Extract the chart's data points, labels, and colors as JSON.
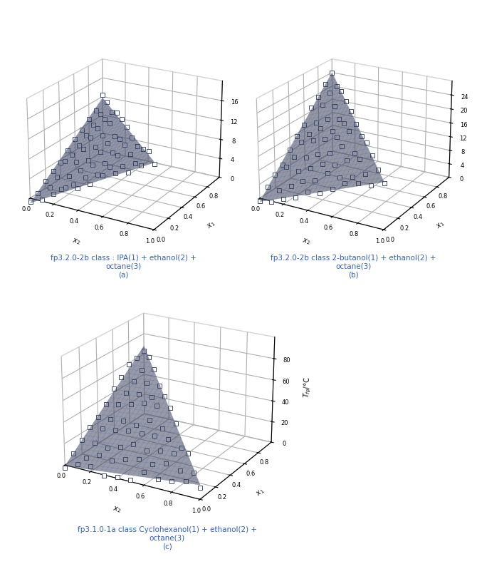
{
  "subplots": [
    {
      "title": "fp3.2.0-2b class : IPA(1) + ethanol(2) +\noctane(3)",
      "label": "(a)",
      "zlim": [
        0,
        20
      ],
      "zticks": [
        0,
        4,
        8,
        12,
        16
      ],
      "fp1": 11.7,
      "fp2": 13.0,
      "fp3": -1.0,
      "surface_color": "#8899cc",
      "surface_alpha": 0.5,
      "elev": 22,
      "azim": -60
    },
    {
      "title": "fp3.2.0-2b class 2-butanol(1) + ethanol(2) +\noctane(3)",
      "label": "(b)",
      "zlim": [
        0,
        28
      ],
      "zticks": [
        0,
        4,
        8,
        12,
        16,
        20,
        24
      ],
      "fp1": 24.0,
      "fp2": 13.0,
      "fp3": -1.0,
      "surface_color": "#8899cc",
      "surface_alpha": 0.5,
      "elev": 22,
      "azim": -60
    },
    {
      "title": "fp3.1.0-1a class Cyclohexanol(1) + ethanol(2) +\noctane(3)",
      "label": "(c)",
      "zlim": [
        0,
        100
      ],
      "zticks": [
        0,
        20,
        40,
        60,
        80
      ],
      "fp1": 68.0,
      "fp2": 13.0,
      "fp3": -1.0,
      "surface_color": "#8899cc",
      "surface_alpha": 0.5,
      "elev": 22,
      "azim": -60
    }
  ],
  "title_color": "#3060c0",
  "scatter_facecolor": "white",
  "scatter_edgecolor": "#223355",
  "scatter_size": 14,
  "scatter_linewidth": 0.6,
  "n_pts_per_axis": 11,
  "surface_n": 30,
  "surface_edgecolor": "#6677bb",
  "surface_linewidth": 0.3,
  "pane_edgecolor": "#aaaaaa",
  "tick_labelsize": 6,
  "axis_labelsize": 7,
  "label_fontsize": 7.5,
  "label_italic_fontsize": 8
}
